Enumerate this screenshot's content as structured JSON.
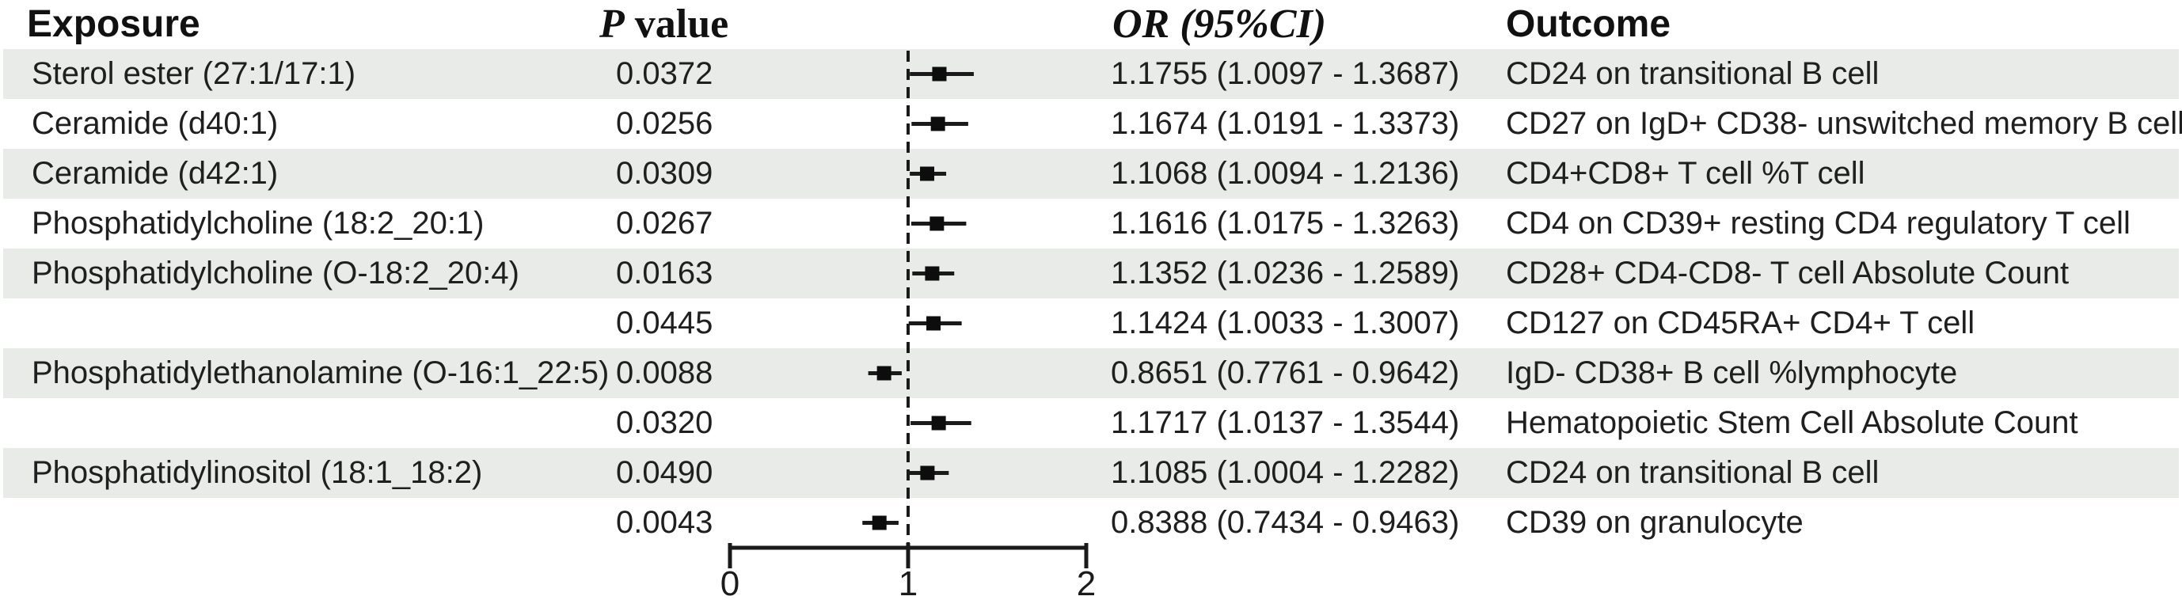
{
  "headers": {
    "exposure": "Exposure",
    "p_italic": "P",
    "p_rest": " value",
    "or_label": "OR (95%CI)",
    "outcome": "Outcome"
  },
  "colors": {
    "band": "#e8ebe7",
    "text": "#1f1f1f",
    "marker": "#0d0d0d",
    "line": "#1a1a1a"
  },
  "chart_data": {
    "type": "scatter",
    "variant": "forest-plot",
    "title": "",
    "xlabel": "",
    "ylabel": "",
    "x_axis": {
      "range": [
        0,
        2
      ],
      "ticks": [
        "0",
        "1",
        "2"
      ],
      "reference_line": 1
    },
    "grid": false,
    "legend": "none",
    "columns": [
      "Exposure",
      "P value",
      "OR (95%CI)",
      "Outcome"
    ],
    "rows": [
      {
        "exposure": "Sterol ester (27:1/17:1)",
        "p_value": "0.0372",
        "or": 1.1755,
        "ci_low": 1.0097,
        "ci_high": 1.3687,
        "or_text": "1.1755 (1.0097 - 1.3687)",
        "outcome": "CD24 on transitional B cell"
      },
      {
        "exposure": "Ceramide (d40:1)",
        "p_value": "0.0256",
        "or": 1.1674,
        "ci_low": 1.0191,
        "ci_high": 1.3373,
        "or_text": "1.1674 (1.0191 - 1.3373)",
        "outcome": "CD27 on IgD+ CD38- unswitched memory B cell"
      },
      {
        "exposure": "Ceramide (d42:1)",
        "p_value": "0.0309",
        "or": 1.1068,
        "ci_low": 1.0094,
        "ci_high": 1.2136,
        "or_text": "1.1068 (1.0094 - 1.2136)",
        "outcome": "CD4+CD8+ T cell %T cell"
      },
      {
        "exposure": "Phosphatidylcholine (18:2_20:1)",
        "p_value": "0.0267",
        "or": 1.1616,
        "ci_low": 1.0175,
        "ci_high": 1.3263,
        "or_text": "1.1616 (1.0175 - 1.3263)",
        "outcome": "CD4 on CD39+ resting CD4 regulatory T cell"
      },
      {
        "exposure": "Phosphatidylcholine (O-18:2_20:4)",
        "p_value": "0.0163",
        "or": 1.1352,
        "ci_low": 1.0236,
        "ci_high": 1.2589,
        "or_text": "1.1352 (1.0236 - 1.2589)",
        "outcome": "CD28+ CD4-CD8- T cell Absolute Count"
      },
      {
        "exposure": "",
        "p_value": "0.0445",
        "or": 1.1424,
        "ci_low": 1.0033,
        "ci_high": 1.3007,
        "or_text": "1.1424 (1.0033 - 1.3007)",
        "outcome": "CD127 on CD45RA+ CD4+ T cell"
      },
      {
        "exposure": "Phosphatidylethanolamine (O-16:1_22:5)",
        "p_value": "0.0088",
        "or": 0.8651,
        "ci_low": 0.7761,
        "ci_high": 0.9642,
        "or_text": "0.8651 (0.7761 - 0.9642)",
        "outcome": "IgD- CD38+ B cell %lymphocyte"
      },
      {
        "exposure": "",
        "p_value": "0.0320",
        "or": 1.1717,
        "ci_low": 1.0137,
        "ci_high": 1.3544,
        "or_text": "1.1717 (1.0137 - 1.3544)",
        "outcome": "Hematopoietic Stem Cell Absolute Count"
      },
      {
        "exposure": "Phosphatidylinositol (18:1_18:2)",
        "p_value": "0.0490",
        "or": 1.1085,
        "ci_low": 1.0004,
        "ci_high": 1.2282,
        "or_text": "1.1085 (1.0004 - 1.2282)",
        "outcome": "CD24 on transitional B cell"
      },
      {
        "exposure": "",
        "p_value": "0.0043",
        "or": 0.8388,
        "ci_low": 0.7434,
        "ci_high": 0.9463,
        "or_text": "0.8388 (0.7434 - 0.9463)",
        "outcome": "CD39 on granulocyte"
      }
    ]
  }
}
